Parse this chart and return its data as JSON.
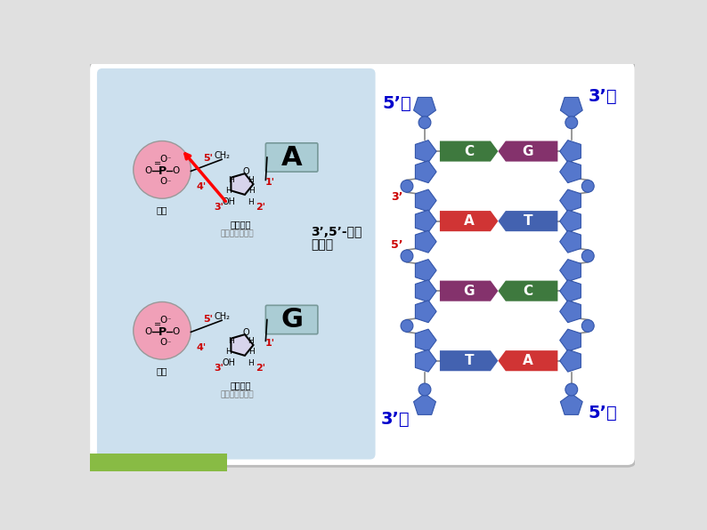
{
  "bg_color": "#e0e0e0",
  "panel_bg": "#ffffff",
  "left_bg": "#cce0ee",
  "phosphate_fill": "#f0a0b8",
  "sugar_fill": "#d0cce0",
  "base_box_fill": "#a8c8d0",
  "base_pairs": [
    {
      "left": "C",
      "right": "G",
      "lc": "#2d6e2d",
      "rc": "#7a2060"
    },
    {
      "left": "A",
      "right": "T",
      "lc": "#cc2222",
      "rc": "#3355aa"
    },
    {
      "left": "G",
      "right": "C",
      "lc": "#7a2060",
      "rc": "#2d6e2d"
    },
    {
      "left": "T",
      "right": "A",
      "lc": "#3355aa",
      "rc": "#cc2222"
    }
  ],
  "backbone_color": "#5577cc",
  "backbone_edge": "#3355aa",
  "line_color": "#888888",
  "title_color": "#0000cc",
  "red_color": "#cc0000",
  "bond_text1": "3’,5’-磷酸",
  "bond_text2": "二酯键",
  "phosphate_text": "磷酸",
  "sugar_text": "脱氧核糖",
  "nucleotide_text": "脱氧核糖核苷酸",
  "label_5end": "5’端",
  "label_3end": "3’端",
  "label_3": "3’",
  "label_5": "5’",
  "figw": 7.94,
  "figh": 5.96,
  "dpi": 100
}
